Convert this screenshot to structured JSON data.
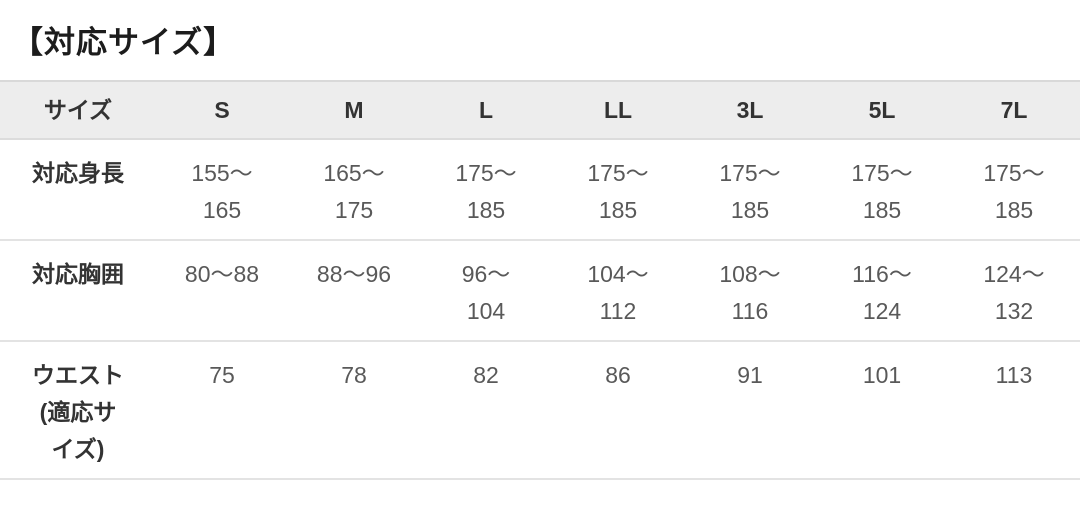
{
  "title": "【対応サイズ】",
  "table": {
    "columns": [
      "サイズ",
      "S",
      "M",
      "L",
      "LL",
      "3L",
      "5L",
      "7L"
    ],
    "rows": [
      {
        "label": "対応身長",
        "cells": [
          "155〜\n165",
          "165〜\n175",
          "175〜\n185",
          "175〜\n185",
          "175〜\n185",
          "175〜\n185",
          "175〜\n185"
        ]
      },
      {
        "label": "対応胸囲",
        "cells": [
          "80〜88",
          "88〜96",
          "96〜\n104",
          "104〜\n112",
          "108〜\n116",
          "116〜\n124",
          "124〜\n132"
        ]
      },
      {
        "label": "ウエスト\n(適応サ\nイズ)",
        "cells": [
          "75",
          "78",
          "82",
          "86",
          "91",
          "101",
          "113"
        ]
      }
    ]
  },
  "colors": {
    "header_bg": "#ededed",
    "row_border": "#e3e3e3",
    "label_text": "#333333",
    "value_text": "#595959",
    "title_text": "#1c1c1c"
  }
}
